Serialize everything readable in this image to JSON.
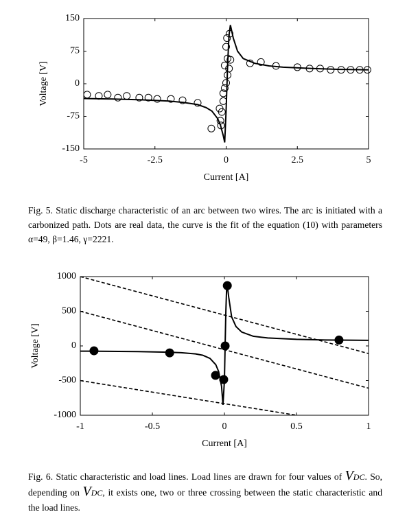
{
  "chart_data": [
    {
      "type": "line",
      "xlabel": "Current [A]",
      "ylabel": "Voltage [V]",
      "xlim": [
        -5,
        5
      ],
      "ylim": [
        -150,
        150
      ],
      "xticks": [
        -5,
        -2.5,
        0,
        2.5,
        5
      ],
      "yticks": [
        -150,
        -75,
        0,
        75,
        150
      ],
      "series": [
        {
          "type": "scatter",
          "color": "#000000",
          "marker_fill": "none",
          "x": [
            -4.88,
            -4.47,
            -4.16,
            -3.8,
            -3.49,
            -3.05,
            -2.73,
            -2.42,
            -1.94,
            -1.53,
            -1.0,
            -0.52,
            -0.2,
            -0.18,
            -0.23,
            -0.15,
            -0.1,
            -0.1,
            -0.05,
            0,
            0.05,
            -0.05,
            0.05,
            0.1,
            0,
            0.03,
            0.12,
            0.15,
            0.84,
            1.22,
            1.75,
            2.5,
            2.93,
            3.3,
            3.67,
            4.04,
            4.37,
            4.69,
            4.96
          ],
          "y": [
            -25,
            -28,
            -25,
            -32,
            -28,
            -32,
            -32,
            -35,
            -35,
            -38,
            -44,
            -103,
            -85,
            -96,
            -57,
            -65,
            -40,
            -22,
            -10,
            2,
            20,
            42,
            58,
            35,
            85,
            105,
            115,
            55,
            47,
            50,
            41,
            38,
            35,
            35,
            32,
            32,
            32,
            32,
            32
          ]
        },
        {
          "type": "line",
          "color": "#000000",
          "x": [
            -5,
            -4,
            -3,
            -2,
            -1.5,
            -1,
            -0.7,
            -0.5,
            -0.3,
            -0.2,
            -0.1,
            -0.05,
            0,
            0.05,
            0.1,
            0.15,
            0.25,
            0.4,
            0.6,
            1,
            1.5,
            2,
            3,
            4,
            5
          ],
          "y": [
            -34,
            -35,
            -37,
            -40,
            -43,
            -48,
            -55,
            -63,
            -80,
            -95,
            -120,
            -135,
            -60,
            40,
            110,
            135,
            105,
            75,
            58,
            47,
            41,
            38,
            35,
            33,
            32
          ]
        }
      ]
    },
    {
      "type": "line",
      "xlabel": "Current [A]",
      "ylabel": "Voltage [V]",
      "xlim": [
        -1,
        1
      ],
      "ylim": [
        -1000,
        1000
      ],
      "xticks": [
        -1,
        -0.5,
        0,
        0.5,
        1
      ],
      "yticks": [
        -1000,
        -500,
        0,
        500,
        1000
      ],
      "series": [
        {
          "type": "line",
          "color": "#000000",
          "x": [
            -1,
            -0.8,
            -0.6,
            -0.4,
            -0.3,
            -0.2,
            -0.15,
            -0.1,
            -0.06,
            -0.04,
            -0.02,
            -0.01,
            0,
            0.005,
            0.01,
            0.015,
            0.02,
            0.03,
            0.05,
            0.08,
            0.12,
            0.2,
            0.3,
            0.5,
            0.7,
            1
          ],
          "y": [
            -75,
            -78,
            -82,
            -90,
            -98,
            -115,
            -135,
            -180,
            -270,
            -370,
            -580,
            -850,
            -500,
            0,
            500,
            800,
            870,
            700,
            420,
            280,
            200,
            140,
            115,
            95,
            85,
            80
          ]
        },
        {
          "type": "dashed",
          "color": "#000000",
          "x": [
            -1,
            1
          ],
          "y": [
            1000,
            -110
          ]
        },
        {
          "type": "dashed",
          "color": "#000000",
          "x": [
            -1,
            1
          ],
          "y": [
            500,
            -610
          ]
        },
        {
          "type": "dashed",
          "color": "#000000",
          "x": [
            -1,
            0.5
          ],
          "y": [
            -500,
            -1000
          ]
        },
        {
          "type": "scatter",
          "color": "#000000",
          "marker_fill": "#000000",
          "x": [
            -0.905,
            -0.38,
            -0.062,
            -0.005,
            0.005,
            0.02,
            0.795
          ],
          "y": [
            -70,
            -100,
            -425,
            -485,
            0,
            870,
            85
          ]
        }
      ]
    }
  ],
  "captions": [
    {
      "text": "Fig. 5. Static discharge characteristic of an arc between two wires. The arc is initiated with a carbonized path. Dots are real data, the curve is the fit of the equation (10) with parameters α=49, β=1.46, γ=2221."
    },
    {
      "parts": [
        "Fig. 6. Static characteristic and load lines. Load lines are drawn for four values of ",
        "V",
        "DC",
        ". So, depending on ",
        "V",
        "DC",
        ", it exists one, two or three crossing between the static characteristic and the load lines."
      ]
    }
  ]
}
